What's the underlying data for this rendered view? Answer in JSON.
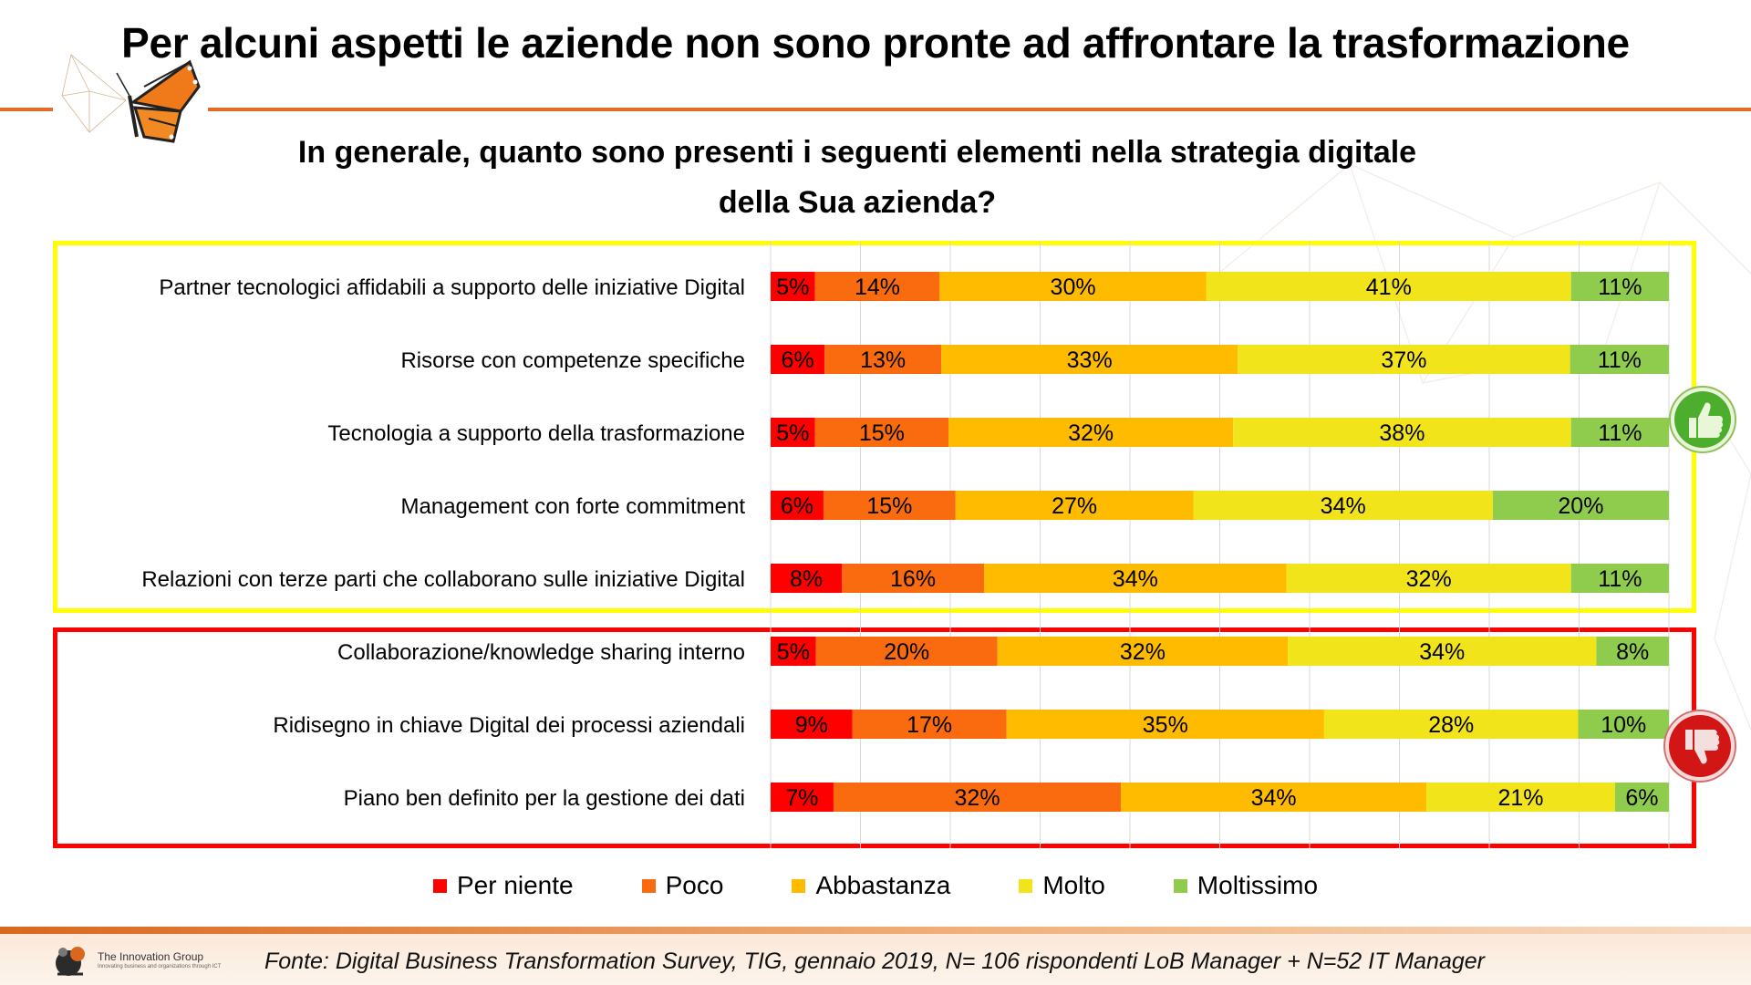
{
  "title": "Per alcuni aspetti le aziende non sono pronte ad affrontare la trasformazione",
  "subtitle_lines": [
    "In generale, quanto sono presenti i seguenti elementi nella strategia digitale",
    "della Sua azienda?"
  ],
  "source": "Fonte: Digital Business Transformation Survey, TIG, gennaio 2019, N= 106 rispondenti LoB Manager + N=52 IT Manager",
  "brand": {
    "name": "The Innovation Group",
    "tagline": "Innovating business and organizations through ICT"
  },
  "icons": {
    "positive": "thumbs-up-icon",
    "negative": "thumbs-down-icon",
    "logo": "butterfly-icon"
  },
  "chart_data": {
    "type": "bar",
    "orientation": "horizontal",
    "stacked": true,
    "normalized": true,
    "categories": [
      "Partner tecnologici affidabili a supporto delle iniziative Digital",
      "Risorse con competenze specifiche",
      "Tecnologia a supporto della trasformazione",
      "Management con forte commitment",
      "Relazioni con terze parti che collaborano sulle iniziative Digital",
      "Collaborazione/knowledge sharing interno",
      "Ridisegno in chiave Digital dei processi aziendali",
      "Piano ben definito per la gestione dei dati"
    ],
    "series": [
      {
        "name": "Per niente",
        "color": "#ff0000",
        "values": [
          5,
          6,
          5,
          6,
          8,
          5,
          9,
          7
        ]
      },
      {
        "name": "Poco",
        "color": "#f96b0e",
        "values": [
          14,
          13,
          15,
          15,
          16,
          20,
          17,
          32
        ]
      },
      {
        "name": "Abbastanza",
        "color": "#ffbb00",
        "values": [
          30,
          33,
          32,
          27,
          34,
          32,
          35,
          34
        ]
      },
      {
        "name": "Molto",
        "color": "#f2e41b",
        "values": [
          41,
          37,
          38,
          34,
          32,
          34,
          28,
          21
        ]
      },
      {
        "name": "Moltissimo",
        "color": "#8fcc4e",
        "values": [
          11,
          11,
          11,
          20,
          11,
          8,
          10,
          6
        ]
      }
    ],
    "value_suffix": "%",
    "groups": [
      {
        "highlight": "#ffff00",
        "rows": [
          0,
          1,
          2,
          3,
          4
        ]
      },
      {
        "highlight": "#ff0000",
        "rows": [
          5,
          6,
          7
        ]
      }
    ],
    "grid": true,
    "legend_position": "bottom"
  }
}
